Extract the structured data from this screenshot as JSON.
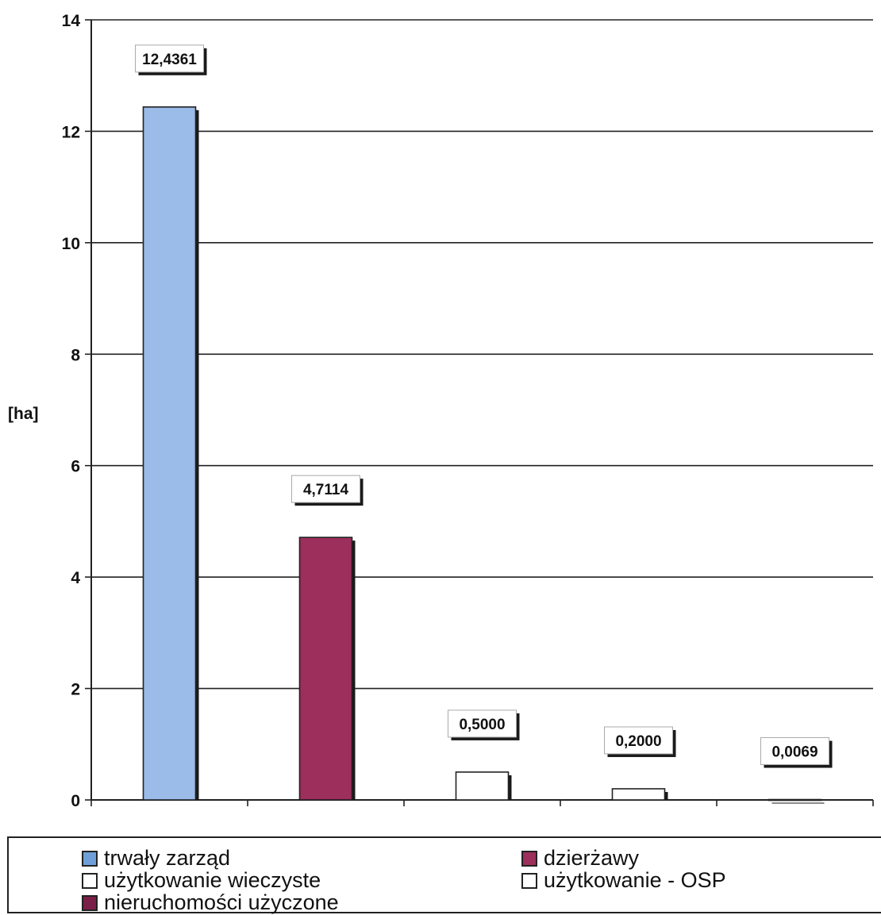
{
  "chart_data": {
    "type": "bar",
    "ylabel": "[ha]",
    "ylim": [
      0,
      14
    ],
    "yticks": [
      "0",
      "2",
      "4",
      "6",
      "8",
      "10",
      "12",
      "14"
    ],
    "grid": true,
    "bars": [
      {
        "category": "trwały zarząd",
        "value": 12.4361,
        "label": "12,4361",
        "color": "#9bbbe8"
      },
      {
        "category": "dzierżawy",
        "value": 4.7114,
        "label": "4,7114",
        "color": "#9c2f5c"
      },
      {
        "category": "użytkowanie wieczyste",
        "value": 0.5,
        "label": "0,5000",
        "color": "#ffffff"
      },
      {
        "category": "użytkowanie - OSP",
        "value": 0.2,
        "label": "0,2000",
        "color": "#ffffff"
      },
      {
        "category": "nieruchomości użyczone",
        "value": 0.0069,
        "label": "0,0069",
        "color": "#7a1f48"
      }
    ],
    "legend": {
      "placement": "bottom",
      "items": [
        {
          "label": "trwały zarząd",
          "color": "#6f9fd8"
        },
        {
          "label": "dzierżawy",
          "color": "#9c2f5c"
        },
        {
          "label": "użytkowanie wieczyste",
          "color": "#ffffff"
        },
        {
          "label": "użytkowanie - OSP",
          "color": "#ffffff"
        },
        {
          "label": "nieruchomości użyczone",
          "color": "#7a1f48"
        }
      ]
    }
  }
}
